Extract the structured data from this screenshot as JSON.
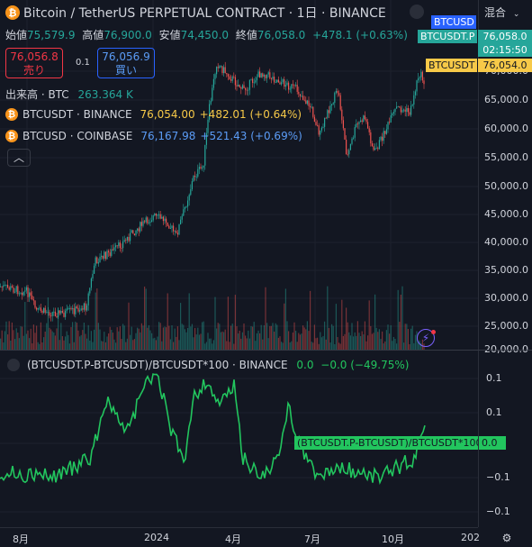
{
  "header": {
    "title": "Bitcoin / TetherUS PERPETUAL CONTRACT · 1日 · BINANCE",
    "ohlc": [
      {
        "label": "始値",
        "value": "75,579.9"
      },
      {
        "label": "高値",
        "value": "76,900.0"
      },
      {
        "label": "安値",
        "value": "74,450.0"
      },
      {
        "label": "終値",
        "value": "76,058.0"
      }
    ],
    "change": "+478.1 (+0.63%)"
  },
  "trade": {
    "sell_price": "76,056.8",
    "sell_label": "売り",
    "spread": "0.1",
    "buy_price": "76,056.9",
    "buy_label": "買い"
  },
  "volume": {
    "label": "出来高 · BTC",
    "value": "263.364 K"
  },
  "symbols": [
    {
      "name": "BTCUSDT · BINANCE",
      "price": "76,054.00",
      "change": "+482.01 (+0.64%)",
      "color": "#f7c948"
    },
    {
      "name": "BTCUSD · COINBASE",
      "price": "76,167.98",
      "change": "+521.43 (+0.69%)",
      "color": "#2962ff"
    }
  ],
  "collapse_glyph": "︿",
  "mode_label": "混合",
  "price_axis": {
    "ticks": [
      "75,000.0",
      "70,000.0",
      "65,000.0",
      "60,000.0",
      "55,000.0",
      "50,000.0",
      "45,000.0",
      "40,000.0",
      "35,000.0",
      "30,000.0",
      "25,000.0",
      "20,000.0"
    ],
    "tags": [
      {
        "text": "BTCUSD",
        "color": "#2962ff"
      },
      {
        "text": "BTCUSDT.P",
        "color": "#26a69a"
      },
      {
        "text": "76,058.0",
        "color": "#26a69a"
      },
      {
        "text": "02:15:50",
        "color": "#26a69a"
      },
      {
        "text": "BTCUSDT",
        "color": "#f7c948"
      },
      {
        "text": "76,054.0",
        "color": "#f7c948"
      }
    ]
  },
  "indicator": {
    "title": "(BTCUSDT.P-BTCUSDT)/BTCUSDT*100 · BINANCE",
    "value": "0.0",
    "change": "−0.0 (−49.75%)",
    "label_tag": "(BTCUSDT.P-BTCUSDT)/BTCUSDT*100",
    "value_tag": "0.0",
    "ticks": [
      "0.1",
      "0.1",
      "0.0",
      "−0.1",
      "−0.1"
    ]
  },
  "time_axis": {
    "ticks": [
      "8月",
      "2024",
      "4月",
      "7月",
      "10月",
      "202"
    ]
  },
  "colors": {
    "up": "#26a69a",
    "down": "#ef5350",
    "indicator": "#22c55e"
  }
}
